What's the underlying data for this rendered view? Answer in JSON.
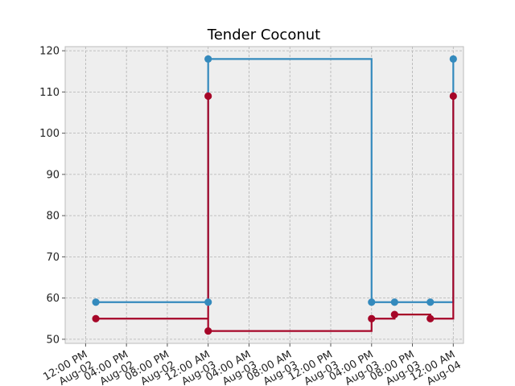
{
  "chart_data": {
    "type": "line",
    "title": "Tender Coconut",
    "xlabel": "",
    "ylabel": "",
    "x_axis": {
      "type": "datetime",
      "range": [
        "2024-08-02T10:00",
        "2024-08-04T01:00"
      ],
      "ticks": [
        {
          "x": "2024-08-02T12:00",
          "line1": "12:00 PM",
          "line2": "Aug-02"
        },
        {
          "x": "2024-08-02T16:00",
          "line1": "04:00 PM",
          "line2": "Aug-02"
        },
        {
          "x": "2024-08-02T20:00",
          "line1": "08:00 PM",
          "line2": "Aug-02"
        },
        {
          "x": "2024-08-03T00:00",
          "line1": "12:00 AM",
          "line2": "Aug-03"
        },
        {
          "x": "2024-08-03T04:00",
          "line1": "04:00 AM",
          "line2": "Aug-03"
        },
        {
          "x": "2024-08-03T08:00",
          "line1": "08:00 AM",
          "line2": "Aug-03"
        },
        {
          "x": "2024-08-03T12:00",
          "line1": "12:00 PM",
          "line2": "Aug-03"
        },
        {
          "x": "2024-08-03T16:00",
          "line1": "04:00 PM",
          "line2": "Aug-03"
        },
        {
          "x": "2024-08-03T20:00",
          "line1": "08:00 PM",
          "line2": "Aug-03"
        },
        {
          "x": "2024-08-04T00:00",
          "line1": "12:00 AM",
          "line2": "Aug-04"
        }
      ]
    },
    "y_axis": {
      "range": [
        49,
        121
      ],
      "ticks": [
        50,
        60,
        70,
        80,
        90,
        100,
        110,
        120
      ]
    },
    "grid": true,
    "step": "post",
    "series": [
      {
        "color": "#348ABD",
        "points": [
          {
            "x": "2024-08-02T13:00",
            "y": 59
          },
          {
            "x": "2024-08-03T00:00",
            "y": 59
          },
          {
            "x": "2024-08-03T00:00",
            "y": 118
          },
          {
            "x": "2024-08-03T16:00",
            "y": 59
          },
          {
            "x": "2024-08-03T18:15",
            "y": 59
          },
          {
            "x": "2024-08-03T21:45",
            "y": 59
          },
          {
            "x": "2024-08-04T00:00",
            "y": 118
          }
        ]
      },
      {
        "color": "#A60628",
        "points": [
          {
            "x": "2024-08-02T13:00",
            "y": 55
          },
          {
            "x": "2024-08-03T00:00",
            "y": 109
          },
          {
            "x": "2024-08-03T00:00",
            "y": 52
          },
          {
            "x": "2024-08-03T16:00",
            "y": 55
          },
          {
            "x": "2024-08-03T18:15",
            "y": 56
          },
          {
            "x": "2024-08-03T21:45",
            "y": 55
          },
          {
            "x": "2024-08-04T00:00",
            "y": 109
          }
        ]
      }
    ]
  }
}
